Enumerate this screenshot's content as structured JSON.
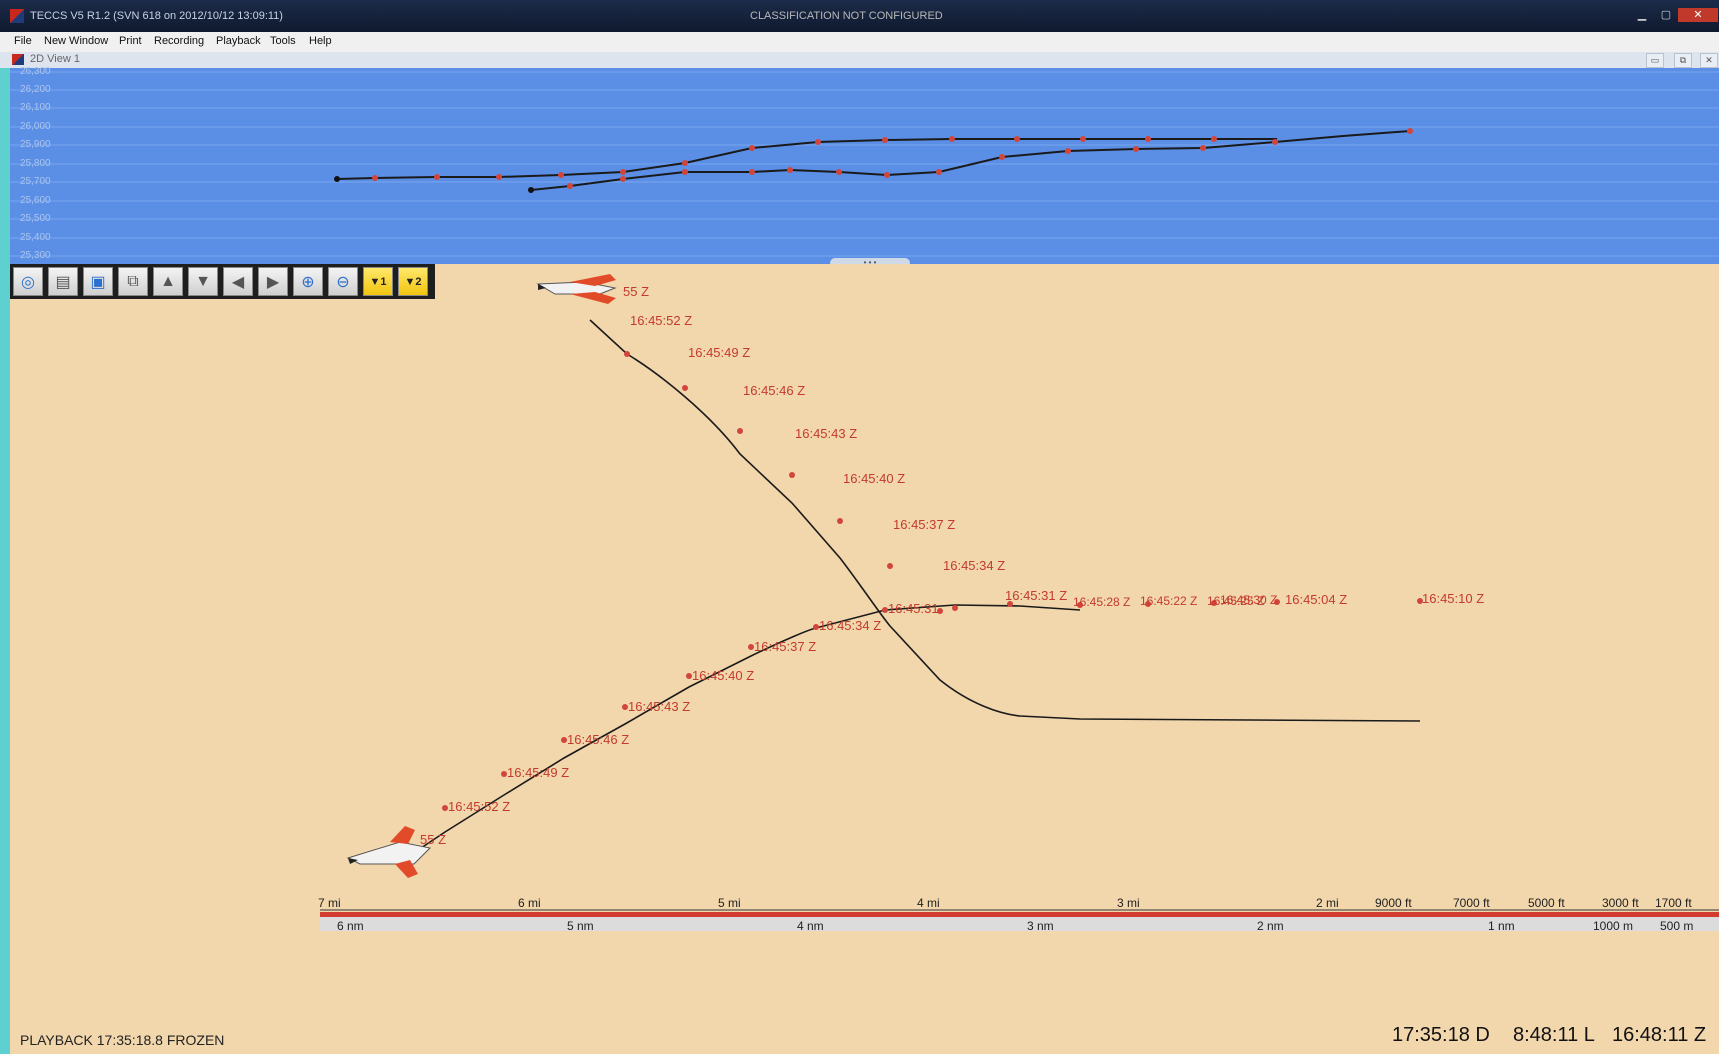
{
  "window": {
    "title": "TECCS V5 R1.2 (SVN 618 on 2012/10/12 13:09:11)",
    "classification": "CLASSIFICATION NOT CONFIGURED",
    "view_title": "2D View 1"
  },
  "menu": [
    "File",
    "New Window",
    "Print",
    "Recording",
    "Playback",
    "Tools",
    "Help"
  ],
  "profile": {
    "altitude_labels": [
      "26,300",
      "26,200",
      "26,100",
      "26,000",
      "25,900",
      "25,800",
      "25,700",
      "25,600",
      "25,500",
      "25,400",
      "25,300"
    ]
  },
  "toolbar": {
    "buttons": [
      {
        "name": "center-view-icon",
        "glyph": "◎"
      },
      {
        "name": "printer-icon",
        "glyph": "▤"
      },
      {
        "name": "save-icon",
        "glyph": "▣"
      },
      {
        "name": "copy-icon",
        "glyph": "⧉"
      },
      {
        "name": "pan-up-icon",
        "glyph": "▲"
      },
      {
        "name": "pan-down-icon",
        "glyph": "▼"
      },
      {
        "name": "pan-left-icon",
        "glyph": "◀"
      },
      {
        "name": "pan-right-icon",
        "glyph": "▶"
      },
      {
        "name": "zoom-in-icon",
        "glyph": "⊕"
      },
      {
        "name": "zoom-out-icon",
        "glyph": "⊖"
      },
      {
        "name": "marker-1-icon",
        "glyph": "▼1"
      },
      {
        "name": "marker-2-icon",
        "glyph": "▼2"
      }
    ]
  },
  "track_labels": {
    "upper": [
      "55 Z",
      "16:45:52 Z",
      "16:45:49 Z",
      "16:45:46 Z",
      "16:45:43 Z",
      "16:45:40 Z",
      "16:45:37 Z",
      "16:45:34 Z",
      "16:45:31 Z"
    ],
    "lower": [
      "55 Z",
      "16:45:52 Z",
      "16:45:49 Z",
      "16:45:46 Z",
      "16:45:43 Z",
      "16:45:40 Z",
      "16:45:37 Z",
      "16:45:34 Z",
      "16:45:31"
    ],
    "merge": [
      "16:45:28 Z",
      "16:45:22 Z",
      "16:45:25 Z",
      "16:45:30 Z",
      "16:45:04 Z",
      "16:45:10 Z"
    ]
  },
  "scale": {
    "miles": [
      "7 mi",
      "6 mi",
      "5 mi",
      "4 mi",
      "3 mi",
      "2 mi",
      "9000 ft",
      "7000 ft",
      "5000 ft",
      "3000 ft",
      "1700 ft"
    ],
    "nautical": [
      "6 nm",
      "5 nm",
      "4 nm",
      "3 nm",
      "2 nm",
      "1 nm",
      "1000 m",
      "500 m"
    ]
  },
  "status": {
    "playback": "PLAYBACK 17:35:18.8  FROZEN",
    "clock_d": "17:35:18 D",
    "clock_l": "8:48:11 L",
    "clock_z": "16:48:11 Z"
  },
  "colors": {
    "profile_bg": "#5b8fe6",
    "plan_bg": "#f2d6ac",
    "track_point": "#d2453a",
    "track_line": "#1a1a1a",
    "scale_bar": "#d23b30"
  }
}
